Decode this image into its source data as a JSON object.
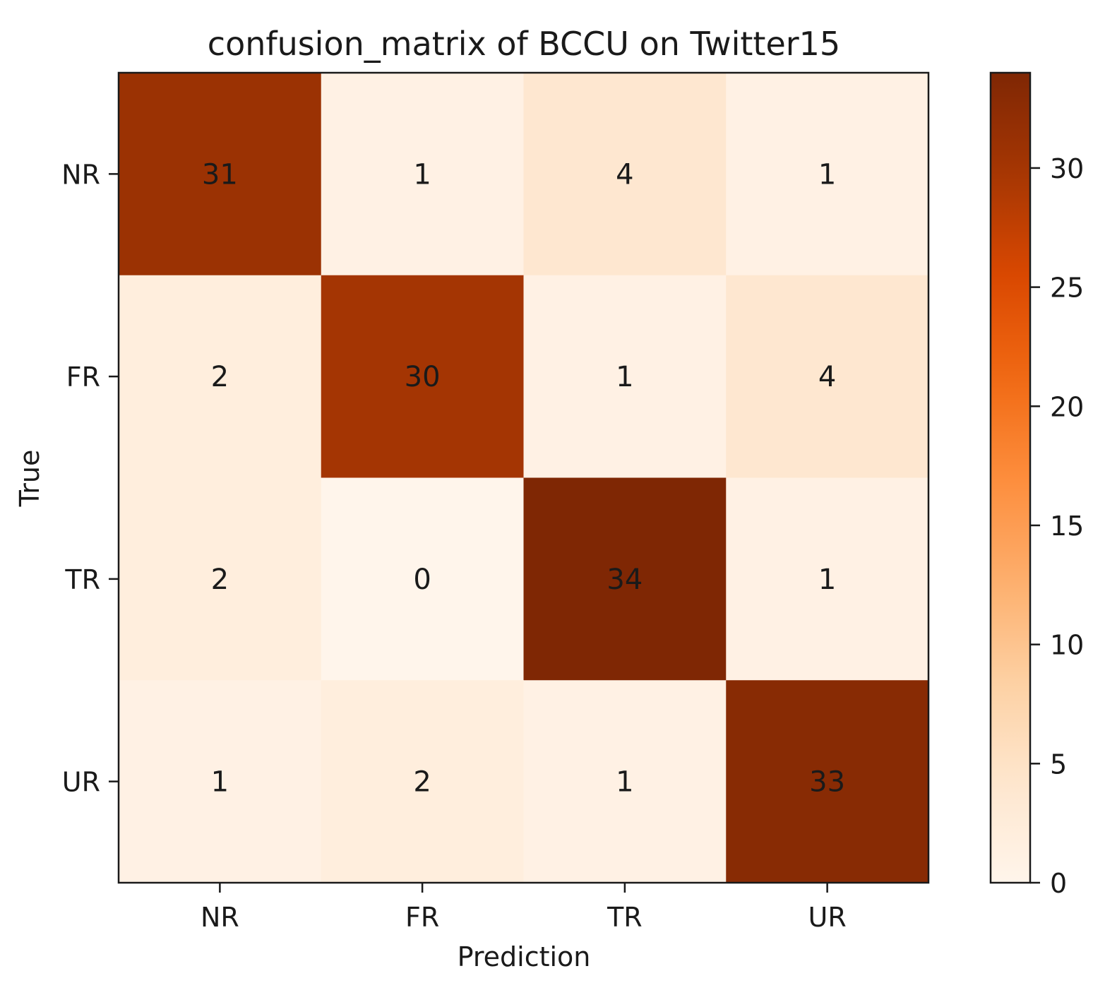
{
  "chart_data": {
    "type": "heatmap",
    "title": "confusion_matrix of BCCU on Twitter15",
    "xlabel": "Prediction",
    "ylabel": "True",
    "x_categories": [
      "NR",
      "FR",
      "TR",
      "UR"
    ],
    "y_categories": [
      "NR",
      "FR",
      "TR",
      "UR"
    ],
    "values": [
      [
        31,
        1,
        4,
        1
      ],
      [
        2,
        30,
        1,
        4
      ],
      [
        2,
        0,
        34,
        1
      ],
      [
        1,
        2,
        1,
        33
      ]
    ],
    "colormap": "Oranges",
    "colorbar": {
      "range": [
        0,
        34
      ],
      "ticks": [
        0,
        5,
        10,
        15,
        20,
        25,
        30
      ],
      "tick_labels": [
        "0",
        "5",
        "10",
        "15",
        "20",
        "25",
        "30"
      ]
    },
    "grid": false
  }
}
